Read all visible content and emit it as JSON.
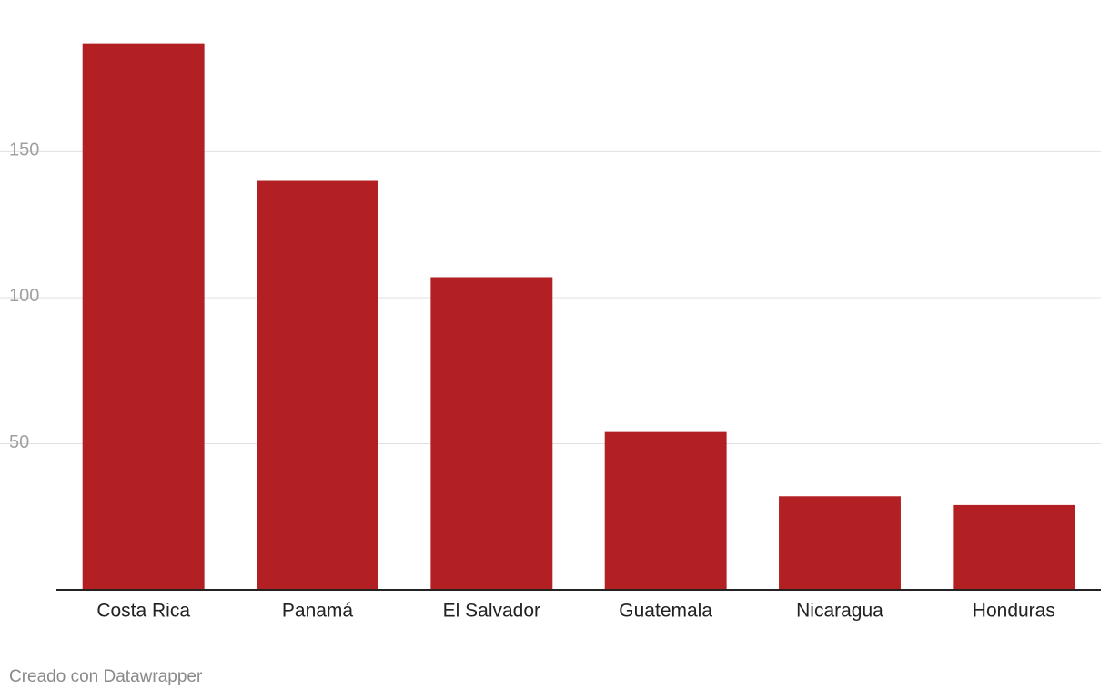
{
  "chart_data": {
    "type": "bar",
    "categories": [
      "Costa Rica",
      "Panamá",
      "El Salvador",
      "Guatemala",
      "Nicaragua",
      "Honduras"
    ],
    "values": [
      187,
      140,
      107,
      54,
      32,
      29
    ],
    "color": "#b22024",
    "ylim": [
      0,
      190
    ],
    "yticks": [
      50,
      100,
      150
    ],
    "grid": true,
    "credit": "Creado con Datawrapper"
  }
}
